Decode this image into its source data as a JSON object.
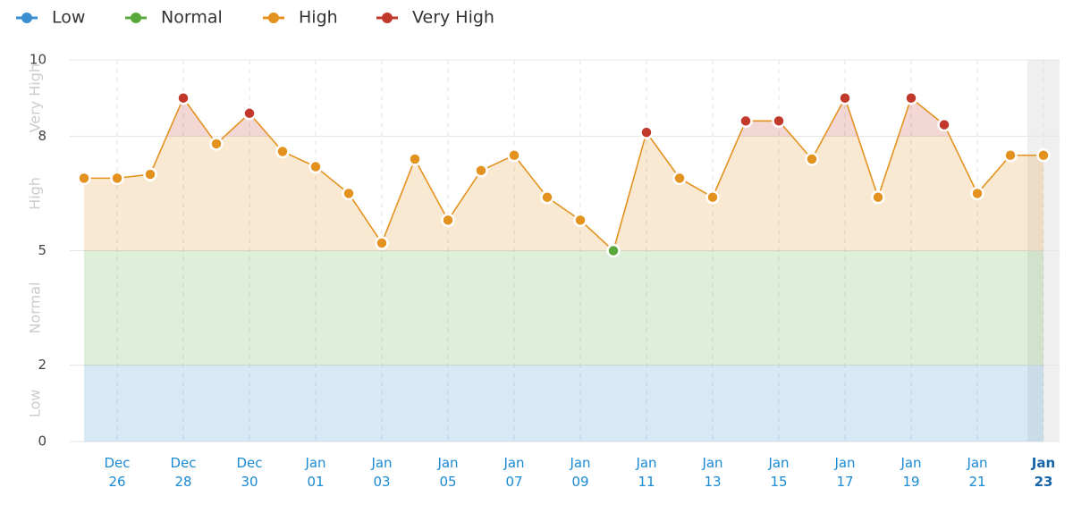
{
  "chart_data": {
    "type": "line",
    "categories": [
      null,
      "Dec 26",
      null,
      "Dec 28",
      null,
      "Dec 30",
      null,
      "Jan 01",
      null,
      "Jan 03",
      null,
      "Jan 05",
      null,
      "Jan 07",
      null,
      "Jan 09",
      null,
      "Jan 11",
      null,
      "Jan 13",
      null,
      "Jan 15",
      null,
      "Jan 17",
      null,
      "Jan 19",
      null,
      "Jan 21",
      null,
      "Jan 23"
    ],
    "values": [
      6.9,
      6.9,
      7.0,
      9.0,
      7.8,
      8.6,
      7.6,
      7.2,
      6.5,
      5.2,
      7.4,
      5.8,
      7.1,
      7.5,
      6.4,
      5.8,
      5.0,
      8.1,
      6.9,
      6.4,
      8.4,
      8.4,
      7.4,
      9.0,
      6.4,
      9.0,
      8.3,
      6.5,
      7.5,
      7.5
    ],
    "line_color": "#e3921f",
    "bands": [
      {
        "name": "Low",
        "color": "#3b8fd0",
        "min": 0,
        "max": 2
      },
      {
        "name": "Normal",
        "color": "#5aa83c",
        "min": 2,
        "max": 5
      },
      {
        "name": "High",
        "color": "#e3921f",
        "min": 5,
        "max": 8
      },
      {
        "name": "Very High",
        "color": "#c0392b",
        "min": 8,
        "max": 10
      }
    ],
    "ylim": [
      0,
      10
    ],
    "yticks": [
      0,
      2,
      5,
      8,
      10
    ],
    "grid": true,
    "legend": "top-left"
  }
}
